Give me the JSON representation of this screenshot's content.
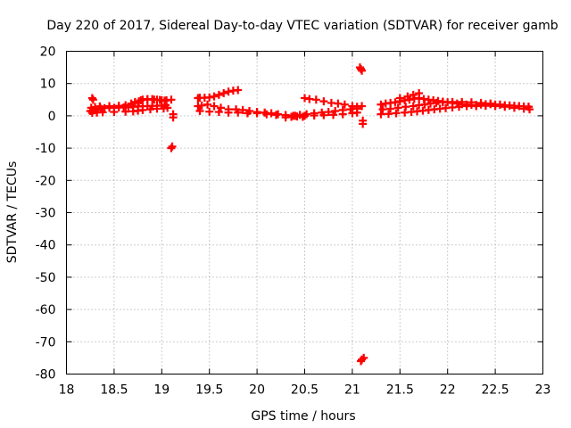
{
  "chart_data": {
    "type": "scatter",
    "title": "Day 220 of 2017, Sidereal Day-to-day VTEC variation (SDTVAR) for receiver gamb",
    "xlabel": "GPS time / hours",
    "ylabel": "SDTVAR / TECUs",
    "xlim": [
      18,
      23
    ],
    "ylim": [
      -80,
      20
    ],
    "x_ticks": [
      18,
      18.5,
      19,
      19.5,
      20,
      20.5,
      21,
      21.5,
      22,
      22.5,
      23
    ],
    "x_tick_labels": [
      "18",
      "18.5",
      "19",
      "19.5",
      "20",
      "20.5",
      "21",
      "21.5",
      "22",
      "22.5",
      "23"
    ],
    "y_ticks": [
      20,
      10,
      0,
      -10,
      -20,
      -30,
      -40,
      -50,
      -60,
      -70,
      -80
    ],
    "y_tick_labels": [
      "20",
      "10",
      "0",
      "-10",
      "-20",
      "-30",
      "-40",
      "-50",
      "-60",
      "-70",
      "-80"
    ],
    "grid": true,
    "marker_color": "#ff0000",
    "marker": "plus",
    "series": [
      {
        "name": "gamb",
        "x": [
          18.25,
          18.27,
          18.29,
          18.31,
          18.33,
          18.36,
          18.4,
          18.45,
          18.5,
          18.55,
          18.6,
          18.65,
          18.7,
          18.75,
          18.8,
          18.85,
          18.9,
          18.95,
          19.0,
          19.04,
          18.26,
          18.3,
          18.35,
          18.45,
          18.55,
          18.62,
          18.68,
          18.72,
          18.78,
          18.85,
          18.92,
          18.98,
          19.05,
          18.27,
          18.32,
          18.38,
          18.5,
          18.62,
          18.7,
          18.75,
          18.8,
          18.88,
          18.95,
          19.02,
          19.06,
          18.68,
          18.72,
          18.76,
          18.8,
          18.85,
          18.9,
          18.95,
          19.0,
          19.03,
          18.27,
          18.28,
          19.1,
          19.12,
          19.1,
          19.11,
          19.12,
          19.38,
          19.4,
          19.45,
          19.5,
          19.55,
          19.6,
          19.65,
          19.7,
          19.75,
          19.8,
          19.38,
          19.42,
          19.48,
          19.55,
          19.62,
          19.7,
          19.78,
          19.85,
          19.92,
          20.0,
          20.08,
          20.15,
          20.22,
          20.3,
          20.38,
          20.45,
          20.52,
          20.6,
          20.68,
          20.75,
          20.82,
          20.9,
          20.98,
          21.05,
          19.4,
          19.5,
          19.6,
          19.7,
          19.8,
          19.9,
          20.0,
          20.1,
          20.2,
          20.3,
          20.4,
          20.5,
          20.6,
          20.7,
          20.8,
          20.9,
          21.0,
          21.05,
          20.5,
          20.55,
          20.62,
          20.7,
          20.78,
          20.85,
          20.92,
          21.0,
          21.05,
          20.3,
          20.36,
          20.42,
          20.48,
          21.08,
          21.09,
          21.1,
          21.1,
          21.11,
          21.11,
          21.1,
          21.12,
          21.09,
          21.3,
          21.35,
          21.4,
          21.45,
          21.5,
          21.55,
          21.6,
          21.65,
          21.7,
          21.75,
          21.8,
          21.85,
          21.9,
          21.95,
          22.0,
          22.05,
          22.1,
          22.15,
          22.2,
          22.25,
          22.3,
          22.35,
          22.4,
          22.45,
          22.5,
          22.55,
          22.6,
          22.65,
          22.7,
          22.75,
          22.8,
          22.85,
          21.32,
          21.4,
          21.48,
          21.56,
          21.64,
          21.7,
          21.76,
          21.82,
          21.88,
          21.95,
          22.05,
          22.15,
          22.25,
          22.35,
          22.45,
          22.55,
          22.65,
          22.75,
          22.85,
          21.3,
          21.38,
          21.46,
          21.55,
          21.62,
          21.68,
          21.74,
          21.8,
          21.86,
          21.92,
          21.98,
          22.05,
          22.12,
          22.2,
          22.3,
          22.4,
          22.5,
          22.6,
          22.7,
          22.8,
          22.86,
          21.5,
          21.58,
          21.64,
          21.7
        ],
        "y": [
          1.5,
          1.6,
          1.7,
          1.8,
          2.0,
          2.2,
          2.4,
          2.5,
          2.5,
          2.6,
          2.6,
          2.7,
          2.8,
          2.9,
          3.0,
          3.0,
          3.1,
          3.1,
          3.2,
          3.3,
          2.5,
          2.7,
          2.9,
          3.0,
          3.1,
          3.3,
          3.8,
          4.3,
          4.8,
          5.0,
          5.0,
          4.9,
          4.8,
          0.9,
          1.0,
          1.1,
          1.2,
          1.3,
          1.4,
          1.6,
          1.8,
          2.0,
          2.2,
          2.3,
          2.5,
          3.5,
          4.0,
          4.5,
          5.0,
          5.2,
          5.2,
          5.0,
          4.8,
          4.7,
          5.5,
          5.0,
          5.0,
          -0.5,
          -10.0,
          -9.5,
          0.5,
          5.5,
          5.6,
          5.6,
          5.7,
          6.0,
          6.5,
          7.0,
          7.5,
          7.8,
          8.0,
          3.0,
          3.2,
          3.5,
          3.0,
          2.5,
          2.0,
          2.0,
          1.8,
          1.5,
          1.2,
          1.0,
          0.8,
          0.5,
          0.2,
          0.0,
          0.3,
          0.5,
          0.8,
          1.0,
          1.2,
          1.5,
          1.8,
          2.0,
          2.2,
          1.5,
          1.3,
          1.2,
          1.0,
          1.0,
          0.8,
          0.8,
          0.5,
          0.3,
          0.2,
          0.0,
          0.0,
          0.1,
          0.2,
          0.3,
          0.5,
          0.8,
          1.0,
          5.5,
          5.2,
          5.0,
          4.5,
          4.0,
          3.8,
          3.5,
          3.0,
          2.8,
          -0.5,
          -0.3,
          -0.2,
          -0.3,
          15.0,
          14.5,
          14.0,
          3.0,
          -1.5,
          -2.5,
          -75.5,
          -75.0,
          -76.0,
          3.5,
          3.8,
          4.0,
          4.2,
          4.5,
          4.8,
          5.0,
          5.3,
          5.5,
          5.2,
          5.0,
          4.8,
          4.6,
          4.4,
          4.2,
          4.0,
          3.8,
          3.6,
          3.5,
          3.4,
          3.4,
          3.5,
          3.6,
          3.6,
          3.5,
          3.4,
          3.3,
          3.2,
          3.1,
          3.0,
          2.9,
          2.8,
          2.0,
          2.2,
          2.5,
          2.8,
          3.0,
          3.3,
          3.5,
          3.8,
          4.0,
          4.2,
          4.3,
          4.3,
          4.2,
          4.0,
          3.8,
          3.5,
          3.2,
          3.0,
          2.8,
          0.5,
          0.6,
          0.8,
          1.0,
          1.2,
          1.4,
          1.6,
          1.8,
          2.0,
          2.2,
          2.4,
          2.6,
          2.8,
          3.0,
          3.0,
          3.1,
          3.0,
          2.8,
          2.5,
          2.2,
          2.0,
          5.5,
          6.0,
          6.5,
          7.0
        ]
      }
    ]
  }
}
